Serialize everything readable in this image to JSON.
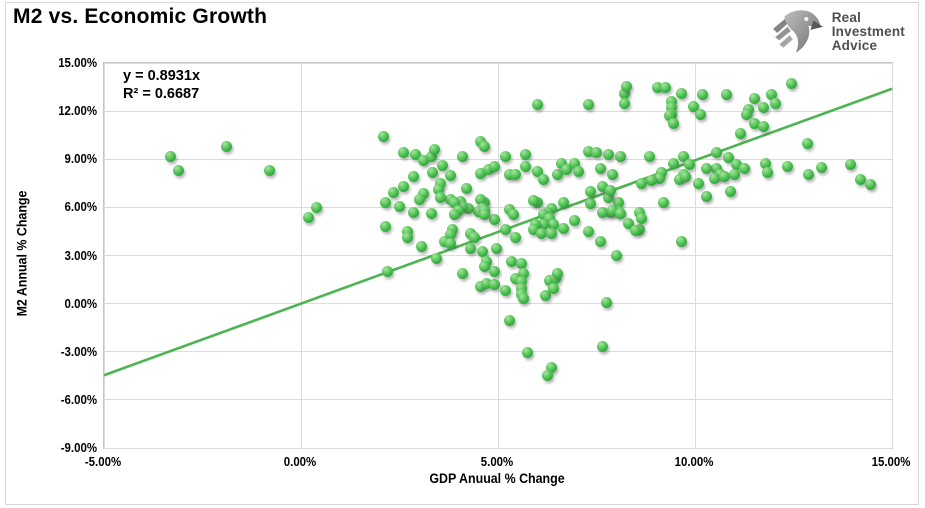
{
  "header": {
    "title": "M2 vs. Economic Growth",
    "logo": {
      "lines": [
        "Real",
        "Investment",
        "Advice"
      ]
    }
  },
  "chart_data": {
    "type": "scatter",
    "title": "M2 vs. Economic Growth",
    "xlabel": "GDP Anuual % Change",
    "ylabel": "M2 Annual % Change",
    "xlim": [
      -5,
      15
    ],
    "ylim": [
      -9,
      15
    ],
    "grid": true,
    "x_ticks": {
      "values": [
        -5,
        0,
        5,
        10,
        15
      ],
      "labels": [
        "-5.00%",
        "0.00%",
        "5.00%",
        "10.00%",
        "15.00%"
      ]
    },
    "y_ticks": {
      "values": [
        15,
        12,
        9,
        6,
        3,
        0,
        -3,
        -6,
        -9
      ],
      "labels": [
        "15.00%",
        "12.00%",
        "9.00%",
        "6.00%",
        "3.00%",
        "0.00%",
        "-3.00%",
        "-6.00%",
        "-9.00%"
      ]
    },
    "annotation": {
      "line1": "y = 0.8931x",
      "line2": "R² = 0.6687"
    },
    "trendline": {
      "slope": 0.8931,
      "r_squared": 0.6687,
      "color": "#4cb551",
      "width": 2.6
    },
    "marker_color": "#3eae49",
    "points": [
      [
        -3.3,
        9.2
      ],
      [
        -3.1,
        8.3
      ],
      [
        -1.9,
        9.8
      ],
      [
        -0.8,
        8.3
      ],
      [
        0.4,
        6.0
      ],
      [
        0.2,
        5.4
      ],
      [
        2.1,
        10.4
      ],
      [
        2.6,
        9.4
      ],
      [
        2.9,
        9.3
      ],
      [
        3.1,
        8.9
      ],
      [
        3.3,
        9.2
      ],
      [
        3.4,
        9.6
      ],
      [
        3.6,
        8.6
      ],
      [
        3.35,
        8.2
      ],
      [
        3.8,
        8.0
      ],
      [
        3.55,
        7.5
      ],
      [
        3.5,
        7.1
      ],
      [
        3.1,
        6.85
      ],
      [
        2.85,
        7.9
      ],
      [
        2.6,
        7.3
      ],
      [
        2.35,
        6.9
      ],
      [
        2.15,
        6.3
      ],
      [
        2.5,
        6.05
      ],
      [
        2.85,
        5.7
      ],
      [
        3.3,
        5.6
      ],
      [
        3.8,
        6.5
      ],
      [
        4.05,
        6.35
      ],
      [
        4.1,
        9.2
      ],
      [
        4.2,
        7.15
      ],
      [
        4.55,
        10.1
      ],
      [
        4.65,
        9.8
      ],
      [
        4.55,
        8.1
      ],
      [
        4.75,
        8.35
      ],
      [
        4.9,
        8.55
      ],
      [
        5.2,
        9.2
      ],
      [
        5.3,
        8.05
      ],
      [
        5.45,
        8.05
      ],
      [
        5.7,
        9.3
      ],
      [
        5.7,
        8.55
      ],
      [
        6.0,
        12.4
      ],
      [
        6.0,
        8.25
      ],
      [
        6.15,
        7.75
      ],
      [
        6.5,
        8.05
      ],
      [
        6.6,
        8.75
      ],
      [
        6.75,
        8.35
      ],
      [
        6.95,
        8.75
      ],
      [
        7.05,
        8.25
      ],
      [
        7.3,
        12.4
      ],
      [
        7.3,
        9.5
      ],
      [
        7.5,
        9.4
      ],
      [
        7.6,
        8.45
      ],
      [
        7.8,
        9.3
      ],
      [
        7.9,
        8.05
      ],
      [
        8.1,
        9.2
      ],
      [
        8.2,
        13.1
      ],
      [
        8.25,
        13.55
      ],
      [
        8.2,
        12.5
      ],
      [
        8.05,
        6.3
      ],
      [
        7.8,
        6.6
      ],
      [
        7.65,
        7.3
      ],
      [
        7.35,
        6.25
      ],
      [
        6.65,
        6.3
      ],
      [
        6.35,
        5.95
      ],
      [
        6.25,
        5.65
      ],
      [
        6.0,
        6.3
      ],
      [
        5.9,
        6.4
      ],
      [
        6.15,
        5.55
      ],
      [
        6.3,
        5.3
      ],
      [
        6.4,
        4.95
      ],
      [
        6.15,
        4.95
      ],
      [
        5.95,
        4.95
      ],
      [
        5.9,
        4.6
      ],
      [
        6.1,
        4.4
      ],
      [
        6.35,
        4.4
      ],
      [
        5.3,
        5.85
      ],
      [
        5.4,
        5.55
      ],
      [
        5.2,
        4.6
      ],
      [
        5.45,
        4.1
      ],
      [
        4.9,
        5.25
      ],
      [
        4.65,
        6.3
      ],
      [
        4.55,
        6.5
      ],
      [
        4.6,
        5.95
      ],
      [
        4.5,
        5.75
      ],
      [
        4.65,
        5.8
      ],
      [
        4.65,
        5.55
      ],
      [
        4.25,
        5.95
      ],
      [
        4.1,
        6.05
      ],
      [
        3.9,
        6.3
      ],
      [
        4.0,
        5.8
      ],
      [
        3.9,
        5.55
      ],
      [
        4.3,
        4.4
      ],
      [
        4.4,
        4.1
      ],
      [
        3.85,
        4.6
      ],
      [
        3.8,
        4.3
      ],
      [
        3.55,
        6.6
      ],
      [
        3.0,
        6.5
      ],
      [
        2.7,
        4.5
      ],
      [
        2.7,
        4.1
      ],
      [
        2.15,
        4.8
      ],
      [
        3.05,
        3.55
      ],
      [
        3.65,
        3.85
      ],
      [
        3.8,
        3.75
      ],
      [
        4.3,
        3.45
      ],
      [
        4.6,
        3.25
      ],
      [
        4.95,
        3.45
      ],
      [
        2.2,
        2.0
      ],
      [
        3.45,
        2.8
      ],
      [
        4.1,
        1.9
      ],
      [
        4.55,
        1.05
      ],
      [
        4.7,
        1.25
      ],
      [
        4.7,
        2.6
      ],
      [
        4.65,
        2.3
      ],
      [
        4.9,
        1.2
      ],
      [
        4.9,
        2.0
      ],
      [
        5.2,
        0.8
      ],
      [
        5.35,
        2.6
      ],
      [
        5.6,
        2.5
      ],
      [
        5.65,
        1.9
      ],
      [
        5.45,
        1.55
      ],
      [
        5.6,
        1.35
      ],
      [
        5.6,
        0.95
      ],
      [
        5.6,
        0.6
      ],
      [
        5.65,
        0.3
      ],
      [
        5.3,
        -1.05
      ],
      [
        6.2,
        0.5
      ],
      [
        6.3,
        1.45
      ],
      [
        6.45,
        1.55
      ],
      [
        6.5,
        1.9
      ],
      [
        6.4,
        0.95
      ],
      [
        5.75,
        -3.05
      ],
      [
        6.35,
        -4.0
      ],
      [
        6.25,
        -4.45
      ],
      [
        7.65,
        -2.7
      ],
      [
        7.75,
        0.1
      ],
      [
        9.05,
        13.45
      ],
      [
        9.25,
        13.45
      ],
      [
        9.4,
        12.6
      ],
      [
        9.65,
        13.1
      ],
      [
        9.4,
        12.2
      ],
      [
        9.4,
        11.8
      ],
      [
        9.35,
        11.7
      ],
      [
        9.45,
        11.25
      ],
      [
        9.95,
        12.3
      ],
      [
        10.2,
        13.05
      ],
      [
        10.15,
        11.8
      ],
      [
        10.8,
        13.05
      ],
      [
        11.35,
        12.1
      ],
      [
        11.3,
        11.8
      ],
      [
        11.5,
        12.8
      ],
      [
        11.75,
        12.2
      ],
      [
        11.5,
        11.25
      ],
      [
        11.75,
        11.05
      ],
      [
        11.95,
        13.05
      ],
      [
        12.05,
        12.5
      ],
      [
        11.15,
        10.6
      ],
      [
        12.45,
        13.7
      ],
      [
        12.85,
        10.0
      ],
      [
        9.7,
        9.2
      ],
      [
        9.85,
        8.7
      ],
      [
        9.45,
        8.75
      ],
      [
        9.7,
        8.05
      ],
      [
        9.6,
        7.75
      ],
      [
        9.75,
        7.95
      ],
      [
        10.55,
        9.4
      ],
      [
        10.85,
        9.1
      ],
      [
        10.55,
        8.4
      ],
      [
        10.65,
        8.05
      ],
      [
        10.3,
        8.45
      ],
      [
        10.5,
        7.8
      ],
      [
        10.75,
        7.95
      ],
      [
        11.05,
        8.7
      ],
      [
        11.0,
        8.05
      ],
      [
        11.25,
        8.45
      ],
      [
        10.3,
        6.7
      ],
      [
        10.9,
        7.0
      ],
      [
        10.1,
        7.5
      ],
      [
        9.15,
        8.15
      ],
      [
        9.1,
        7.8
      ],
      [
        8.9,
        7.65
      ],
      [
        8.65,
        7.5
      ],
      [
        8.85,
        9.2
      ],
      [
        8.6,
        5.65
      ],
      [
        9.2,
        6.3
      ],
      [
        9.65,
        3.9
      ],
      [
        8.6,
        4.6
      ],
      [
        11.8,
        8.75
      ],
      [
        11.85,
        8.15
      ],
      [
        12.35,
        8.55
      ],
      [
        12.88,
        8.05
      ],
      [
        13.2,
        8.5
      ],
      [
        13.95,
        8.7
      ],
      [
        14.2,
        7.75
      ],
      [
        14.45,
        7.45
      ],
      [
        7.35,
        7.0
      ],
      [
        7.85,
        7.05
      ],
      [
        7.85,
        5.65
      ],
      [
        8.05,
        5.75
      ],
      [
        7.65,
        5.7
      ],
      [
        7.9,
        5.8
      ],
      [
        8.1,
        5.6
      ],
      [
        8.3,
        5.0
      ],
      [
        8.65,
        5.3
      ],
      [
        6.95,
        5.2
      ],
      [
        6.65,
        4.7
      ],
      [
        7.3,
        4.5
      ],
      [
        7.6,
        3.9
      ],
      [
        8.5,
        4.55
      ],
      [
        8.0,
        3.0
      ]
    ]
  }
}
